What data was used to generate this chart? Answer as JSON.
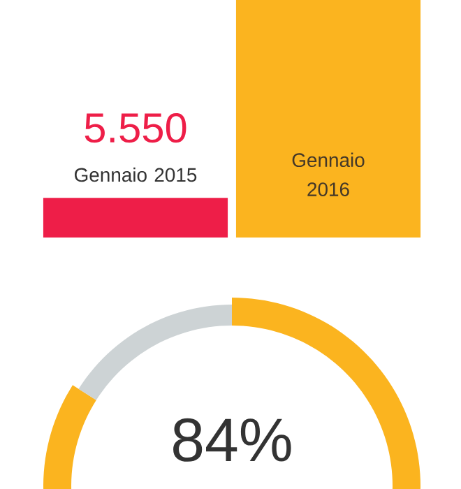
{
  "chart_data": [
    {
      "type": "bar",
      "categories": [
        "Gennaio 2015",
        "Gennaio 2016"
      ],
      "values": [
        5550,
        33300
      ],
      "colors": [
        "#ee1e48",
        "#fbb41f"
      ],
      "value_labels": [
        "5.550",
        null
      ]
    },
    {
      "type": "donut",
      "categories": [
        null,
        null
      ],
      "values": [
        84,
        16
      ],
      "colors": [
        "#fbb41f",
        "#cdd3d5"
      ],
      "value_labels": [
        "84%",
        null
      ]
    }
  ]
}
